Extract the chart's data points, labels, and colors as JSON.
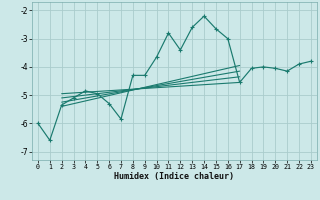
{
  "xlabel": "Humidex (Indice chaleur)",
  "bg_color": "#cce8e8",
  "grid_color": "#aacccc",
  "line_color": "#1a7a6e",
  "xlim": [
    -0.5,
    23.5
  ],
  "ylim": [
    -7.3,
    -1.7
  ],
  "yticks": [
    -7,
    -6,
    -5,
    -4,
    -3,
    -2
  ],
  "xticks": [
    0,
    1,
    2,
    3,
    4,
    5,
    6,
    7,
    8,
    9,
    10,
    11,
    12,
    13,
    14,
    15,
    16,
    17,
    18,
    19,
    20,
    21,
    22,
    23
  ],
  "main_x": [
    0,
    1,
    2,
    3,
    4,
    5,
    6,
    7,
    8,
    9,
    10,
    11,
    12,
    13,
    14,
    15,
    16,
    17,
    18,
    19,
    20,
    21,
    22,
    23
  ],
  "main_y": [
    -6.0,
    -6.6,
    -5.35,
    -5.1,
    -4.85,
    -4.95,
    -5.3,
    -5.85,
    -4.3,
    -4.3,
    -3.65,
    -2.8,
    -3.4,
    -2.6,
    -2.2,
    -2.65,
    -3.0,
    -4.55,
    -4.05,
    -4.0,
    -4.05,
    -4.15,
    -3.9,
    -3.8
  ],
  "reg_lines": [
    {
      "x": [
        2,
        17
      ],
      "y": [
        -4.95,
        -4.55
      ]
    },
    {
      "x": [
        2,
        17
      ],
      "y": [
        -5.1,
        -4.35
      ]
    },
    {
      "x": [
        2,
        17
      ],
      "y": [
        -5.25,
        -4.15
      ]
    },
    {
      "x": [
        2,
        17
      ],
      "y": [
        -5.4,
        -3.95
      ]
    }
  ]
}
